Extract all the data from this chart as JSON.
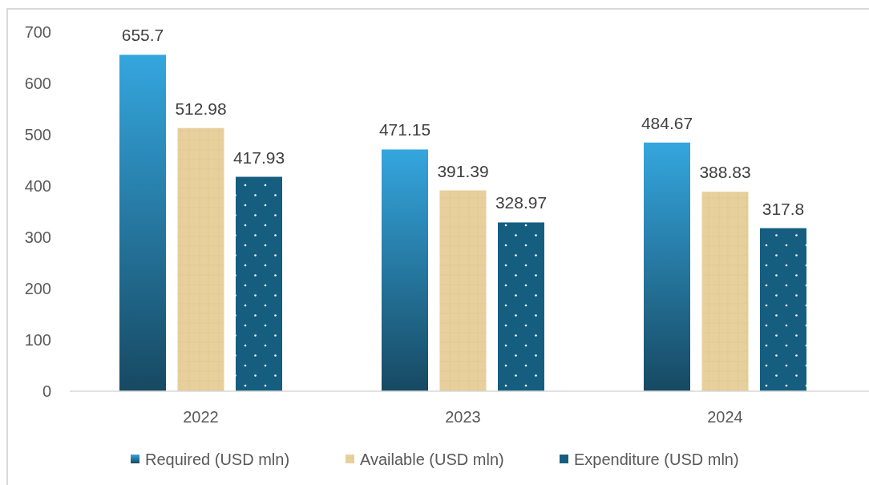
{
  "chart_data": {
    "type": "bar",
    "categories": [
      "2022",
      "2023",
      "2024"
    ],
    "series": [
      {
        "name": "Required (USD mln)",
        "color": "#2a86b3",
        "values": [
          655.7,
          471.15,
          484.67
        ]
      },
      {
        "name": "Available (USD mln)",
        "color": "#e8d09c",
        "values": [
          512.98,
          391.39,
          388.83
        ]
      },
      {
        "name": "Expenditure (USD mln)",
        "color": "#165e80",
        "values": [
          417.93,
          328.97,
          317.8
        ]
      }
    ],
    "ylim": [
      0,
      700
    ],
    "yticks": [
      0,
      100,
      200,
      300,
      400,
      500,
      600,
      700
    ],
    "data_labels": true,
    "legend": "bottom",
    "grid": false
  }
}
